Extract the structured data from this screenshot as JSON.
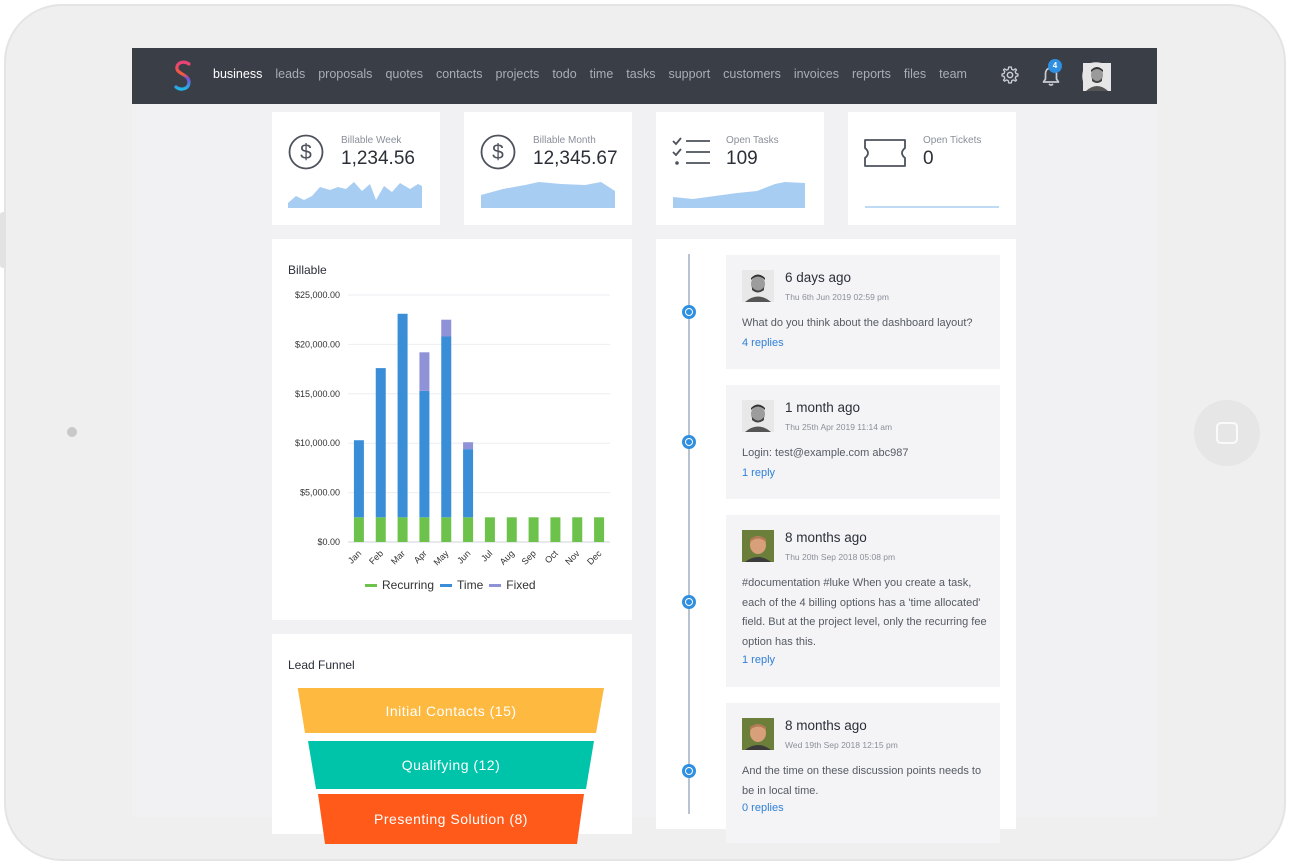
{
  "nav": {
    "links": [
      "business",
      "leads",
      "proposals",
      "quotes",
      "contacts",
      "projects",
      "todo",
      "time",
      "tasks",
      "support",
      "customers",
      "invoices",
      "reports",
      "files",
      "team"
    ],
    "active": "business",
    "notification_count": "4"
  },
  "stats": {
    "billable_week": {
      "label": "Billable Week",
      "value": "1,234.56"
    },
    "billable_month": {
      "label": "Billable Month",
      "value": "12,345.67"
    },
    "open_tasks": {
      "label": "Open Tasks",
      "value": "109"
    },
    "open_tickets": {
      "label": "Open Tickets",
      "value": "0"
    },
    "spark_color": "#a8cdf2"
  },
  "billable": {
    "title": "Billable",
    "legend": [
      {
        "name": "Recurring",
        "color": "#6cc24a"
      },
      {
        "name": "Time",
        "color": "#3a8ed8"
      },
      {
        "name": "Fixed",
        "color": "#9092d8"
      }
    ]
  },
  "chart_data": {
    "type": "bar",
    "stacked": true,
    "title": "Billable",
    "categories": [
      "Jan",
      "Feb",
      "Mar",
      "Apr",
      "May",
      "Jun",
      "Jul",
      "Aug",
      "Sep",
      "Oct",
      "Nov",
      "Dec"
    ],
    "series": [
      {
        "name": "Recurring",
        "color": "#6cc24a",
        "values": [
          2500,
          2500,
          2500,
          2500,
          2500,
          2500,
          2500,
          2500,
          2500,
          2500,
          2500,
          2500
        ]
      },
      {
        "name": "Time",
        "color": "#3a8ed8",
        "values": [
          7800,
          15100,
          20600,
          12800,
          18300,
          6900,
          0,
          0,
          0,
          0,
          0,
          0
        ]
      },
      {
        "name": "Fixed",
        "color": "#9092d8",
        "values": [
          0,
          0,
          0,
          3900,
          1700,
          700,
          0,
          0,
          0,
          0,
          0,
          0
        ]
      }
    ],
    "yticks": [
      "$0.00",
      "$5,000.00",
      "$10,000.00",
      "$15,000.00",
      "$20,000.00",
      "$25,000.00"
    ],
    "ylim": [
      0,
      25000
    ],
    "grid": true,
    "legend": "bottom"
  },
  "funnel": {
    "title": "Lead Funnel",
    "stages": [
      {
        "label": "Initial Contacts (15)",
        "color": "#fdb940"
      },
      {
        "label": "Qualifying (12)",
        "color": "#00c4aa"
      },
      {
        "label": "Presenting Solution (8)",
        "color": "#ff5a19"
      }
    ]
  },
  "discussions": [
    {
      "when": "6 days ago",
      "date": "Thu 6th Jun 2019 02:59 pm",
      "text": "What do you think about the dashboard layout?",
      "replies": "4 replies"
    },
    {
      "when": "1 month ago",
      "date": "Thu 25th Apr 2019 11:14 am",
      "text": "Login: test@example.com abc987",
      "replies": "1 reply"
    },
    {
      "when": "8 months ago",
      "date": "Thu 20th Sep 2018 05:08 pm",
      "text": "#documentation #luke When you create a task, each of the 4 billing options has a 'time allocated' field. But at the project level, only the recurring fee option has this.",
      "replies": "1 reply"
    },
    {
      "when": "8 months ago",
      "date": "Wed 19th Sep 2018 12:15 pm",
      "text": "And the time on these discussion points needs to be in local time.",
      "replies": "0 replies"
    }
  ]
}
